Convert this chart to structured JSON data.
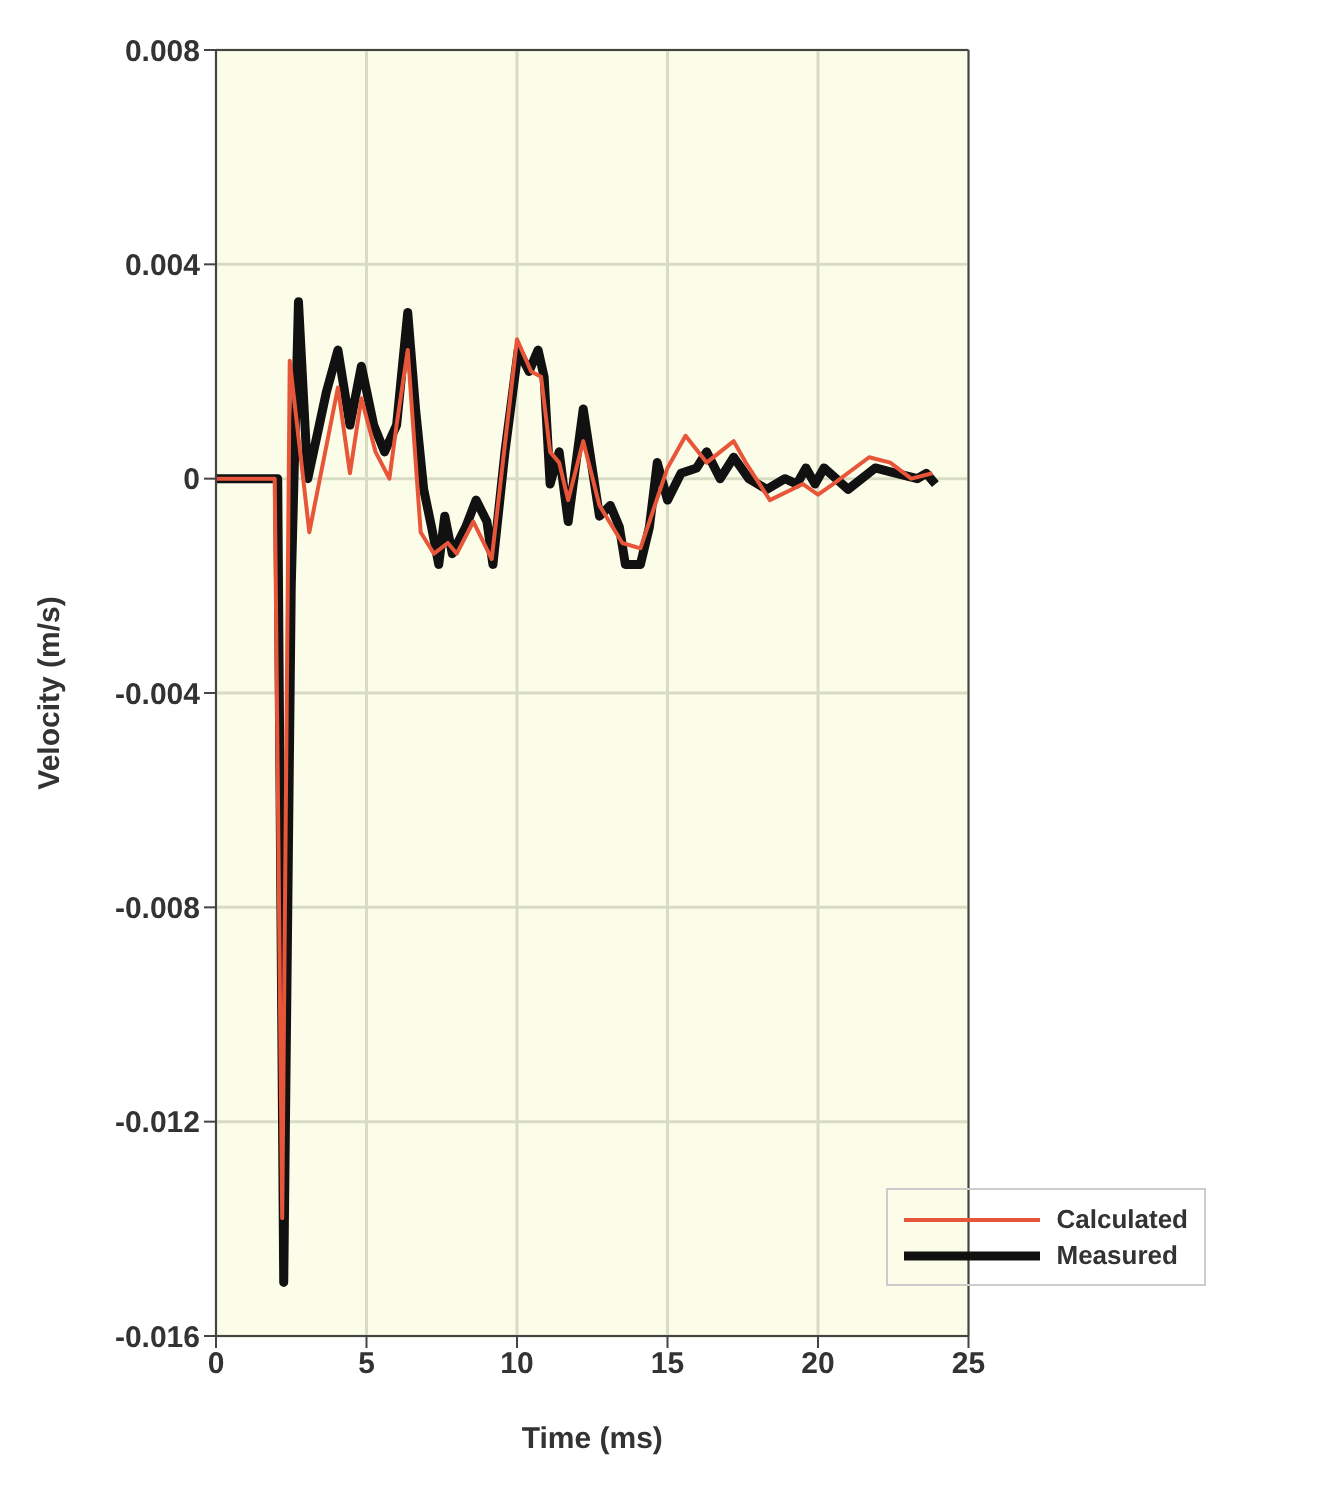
{
  "chart_data": {
    "type": "line",
    "xlabel": "Time (ms)",
    "ylabel": "Velocity (m/s)",
    "xlim": [
      0,
      25
    ],
    "xticks": [
      0,
      5,
      10,
      15,
      20,
      25
    ],
    "ylim": [
      -0.016,
      0.008
    ],
    "yticks": [
      -0.016,
      -0.012,
      -0.008,
      -0.004,
      0,
      0.004,
      0.008
    ],
    "grid": true,
    "legend": "bottom right",
    "marker": "none",
    "line_style": "solid",
    "series": [
      {
        "name": "Calculated",
        "color": "#e8563a",
        "x": [
          0,
          1.95,
          2.2,
          2.45,
          3.1,
          4.05,
          4.45,
          4.83,
          5.3,
          5.76,
          6.0,
          6.37,
          6.8,
          7.24,
          7.7,
          8.0,
          8.55,
          9.16,
          10.0,
          10.47,
          10.8,
          11.1,
          11.4,
          11.7,
          12.2,
          12.74,
          13.5,
          14.1,
          15.0,
          15.6,
          16.3,
          17.2,
          17.6,
          18.4,
          19.5,
          20.0,
          20.5,
          21.7,
          22.4,
          23.1,
          23.8
        ],
        "values": [
          0,
          0,
          -0.0138,
          0.0022,
          -0.001,
          0.0017,
          0.0001,
          0.0015,
          0.0005,
          0,
          0.001,
          0.0024,
          -0.001,
          -0.0014,
          -0.0012,
          -0.0014,
          -0.0008,
          -0.0015,
          0.0026,
          0.002,
          0.0019,
          0.0005,
          0.0003,
          -0.0004,
          0.0007,
          -0.0005,
          -0.0012,
          -0.0013,
          0.0002,
          0.0008,
          0.0003,
          0.0007,
          0.0003,
          -0.0004,
          -0.0001,
          -0.0003,
          -0.0001,
          0.0004,
          0.0003,
          0,
          0.0001
        ]
      },
      {
        "name": "Measured",
        "color": "#111111",
        "x": [
          0,
          2.05,
          2.25,
          2.5,
          2.74,
          3.05,
          3.66,
          4.05,
          4.45,
          4.83,
          5.24,
          5.6,
          6.0,
          6.37,
          6.63,
          6.9,
          7.16,
          7.4,
          7.6,
          7.85,
          8.3,
          8.64,
          9.0,
          9.2,
          9.6,
          10.04,
          10.4,
          10.7,
          10.9,
          11.1,
          11.4,
          11.7,
          12.2,
          12.74,
          13.1,
          13.4,
          13.6,
          14.1,
          14.4,
          14.66,
          15.0,
          15.45,
          15.97,
          16.3,
          16.75,
          17.2,
          17.7,
          18.3,
          18.9,
          19.3,
          19.6,
          19.9,
          20.2,
          21.0,
          21.9,
          22.6,
          23.3,
          23.6,
          23.9
        ],
        "values": [
          0,
          0,
          -0.015,
          -0.002,
          0.0033,
          0,
          0.0016,
          0.0024,
          0.001,
          0.0021,
          0.001,
          0.0005,
          0.001,
          0.0031,
          0.0013,
          -0.0002,
          -0.0009,
          -0.0016,
          -0.0007,
          -0.0014,
          -0.0009,
          -0.0004,
          -0.0008,
          -0.0016,
          0.0005,
          0.0024,
          0.002,
          0.0024,
          0.0019,
          -0.0001,
          0.0005,
          -0.0008,
          0.0013,
          -0.0007,
          -0.0005,
          -0.0009,
          -0.0016,
          -0.0016,
          -0.0009,
          0.0003,
          -0.0004,
          0.0001,
          0.0002,
          0.0005,
          0,
          0.0004,
          0,
          -0.0002,
          0,
          -0.0001,
          0.0002,
          -0.0001,
          0.0002,
          -0.0002,
          0.0002,
          0.0001,
          0,
          0.0001,
          -0.0001
        ]
      }
    ]
  }
}
